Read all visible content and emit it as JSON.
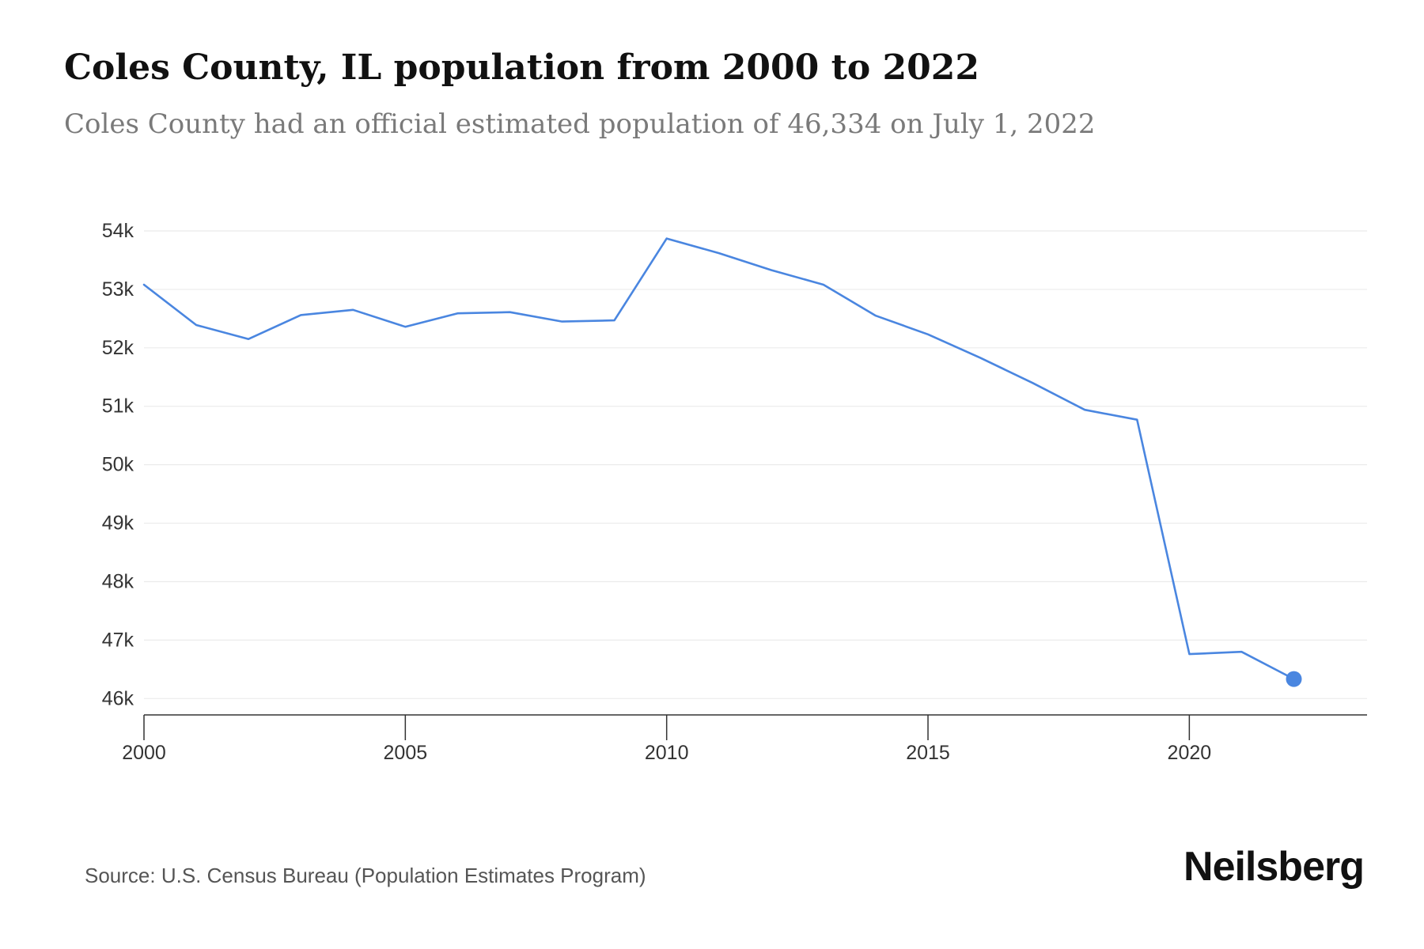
{
  "header": {
    "title": "Coles County, IL population from 2000 to 2022",
    "subtitle": "Coles County had an official estimated population of 46,334 on July 1, 2022"
  },
  "footer": {
    "source": "Source: U.S. Census Bureau (Population Estimates Program)",
    "brand": "Neilsberg"
  },
  "colors": {
    "line": "#4a86e0",
    "grid": "#ebebeb",
    "axis": "#333333"
  },
  "chart_data": {
    "type": "line",
    "title": "Coles County, IL population from 2000 to 2022",
    "xlabel": "",
    "ylabel": "",
    "x": [
      2000,
      2001,
      2002,
      2003,
      2004,
      2005,
      2006,
      2007,
      2008,
      2009,
      2010,
      2011,
      2012,
      2013,
      2014,
      2015,
      2016,
      2017,
      2018,
      2019,
      2020,
      2021,
      2022
    ],
    "values": [
      53080,
      52390,
      52150,
      52560,
      52650,
      52360,
      52590,
      52610,
      52450,
      52470,
      53870,
      53620,
      53330,
      53080,
      52550,
      52230,
      51830,
      51400,
      50940,
      50770,
      46760,
      46800,
      46334
    ],
    "xlim": [
      2000,
      2023.4
    ],
    "ylim": [
      45720,
      54000
    ],
    "y_ticks": [
      46000,
      47000,
      48000,
      49000,
      50000,
      51000,
      52000,
      53000,
      54000
    ],
    "y_tick_labels": [
      "46k",
      "47k",
      "48k",
      "49k",
      "50k",
      "51k",
      "52k",
      "53k",
      "54k"
    ],
    "x_ticks": [
      2000,
      2005,
      2010,
      2015,
      2020
    ],
    "x_tick_labels": [
      "2000",
      "2005",
      "2010",
      "2015",
      "2020"
    ],
    "highlight_last_point": true,
    "grid": true,
    "legend": "none"
  }
}
